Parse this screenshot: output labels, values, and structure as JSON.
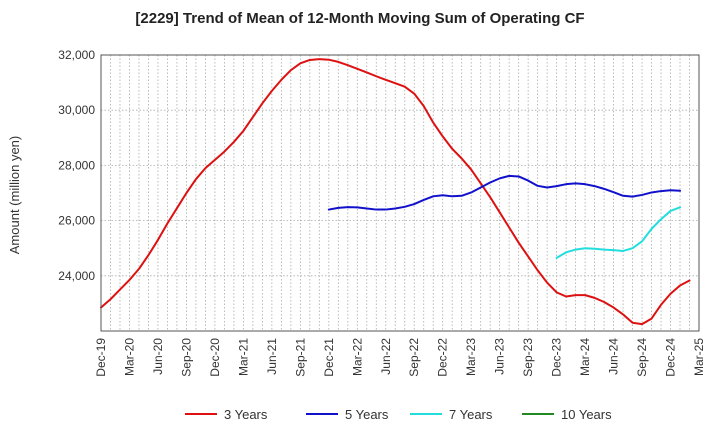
{
  "chart_data": {
    "type": "line",
    "title": "[2229]  Trend of Mean of 12-Month Moving Sum of Operating CF",
    "xlabel": "",
    "ylabel": "Amount (million yen)",
    "ylim": [
      22000,
      32000
    ],
    "yticks": [
      24000,
      26000,
      28000,
      30000,
      32000
    ],
    "ytick_labels": [
      "24,000",
      "26,000",
      "28,000",
      "30,000",
      "32,000"
    ],
    "x_tick_labels": [
      "Dec-19",
      "Mar-20",
      "Jun-20",
      "Sep-20",
      "Dec-20",
      "Mar-21",
      "Jun-21",
      "Sep-21",
      "Dec-21",
      "Mar-22",
      "Jun-22",
      "Sep-22",
      "Dec-22",
      "Mar-23",
      "Jun-23",
      "Sep-23",
      "Dec-23",
      "Mar-24",
      "Jun-24",
      "Sep-24",
      "Dec-24",
      "Mar-25"
    ],
    "x_range_months": [
      0,
      63
    ],
    "grid": true,
    "legend_position": "bottom",
    "series": [
      {
        "name": "3 Years",
        "color": "#dd1111",
        "start_month": 0,
        "values": [
          22850,
          23150,
          23500,
          23850,
          24250,
          24750,
          25300,
          25900,
          26450,
          27000,
          27500,
          27900,
          28200,
          28500,
          28850,
          29250,
          29750,
          30250,
          30700,
          31100,
          31450,
          31700,
          31820,
          31850,
          31830,
          31750,
          31630,
          31500,
          31370,
          31230,
          31100,
          30980,
          30850,
          30600,
          30150,
          29550,
          29050,
          28600,
          28250,
          27850,
          27350,
          26850,
          26300,
          25750,
          25200,
          24700,
          24200,
          23750,
          23400,
          23250,
          23300,
          23300,
          23200,
          23050,
          22850,
          22600,
          22300,
          22250,
          22450,
          22950,
          23350,
          23650,
          23830
        ]
      },
      {
        "name": "5 Years",
        "color": "#1111cc",
        "start_month": 24,
        "values": [
          26400,
          26460,
          26490,
          26480,
          26440,
          26400,
          26400,
          26440,
          26500,
          26600,
          26750,
          26880,
          26920,
          26880,
          26900,
          27020,
          27200,
          27380,
          27530,
          27620,
          27600,
          27450,
          27260,
          27200,
          27250,
          27320,
          27350,
          27320,
          27250,
          27150,
          27030,
          26900,
          26870,
          26930,
          27020,
          27070,
          27100,
          27080
        ]
      },
      {
        "name": "7 Years",
        "color": "#22dddd",
        "start_month": 48,
        "values": [
          24650,
          24850,
          24950,
          25000,
          24980,
          24950,
          24930,
          24900,
          25000,
          25250,
          25700,
          26050,
          26350,
          26480
        ]
      },
      {
        "name": "10 Years",
        "color": "#228822",
        "start_month": 0,
        "values": []
      }
    ]
  }
}
